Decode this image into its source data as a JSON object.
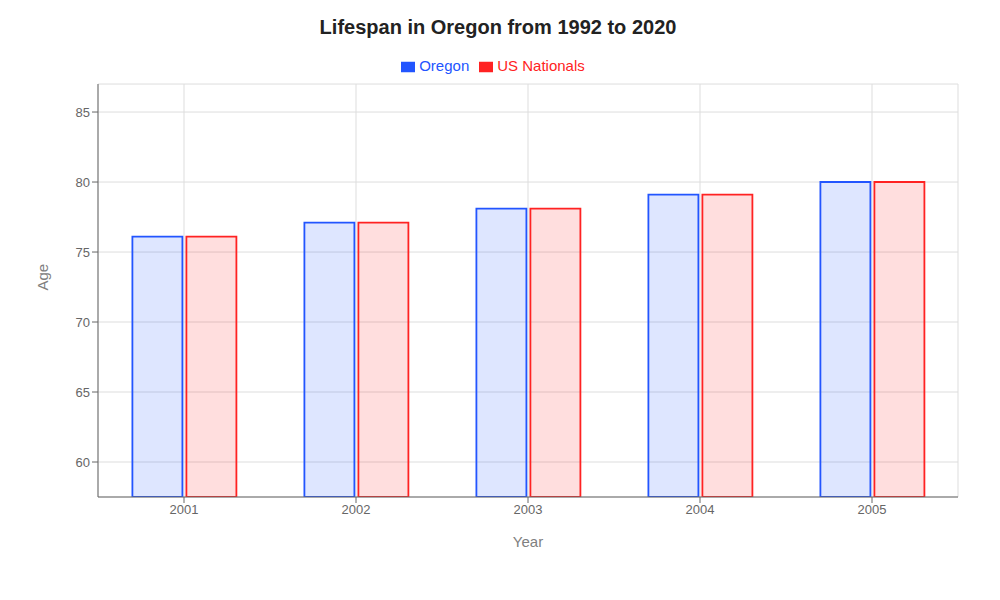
{
  "chart_data": {
    "type": "bar",
    "title": "Lifespan in Oregon from 1992 to 2020",
    "xlabel": "Year",
    "ylabel": "Age",
    "categories": [
      "2001",
      "2002",
      "2003",
      "2004",
      "2005"
    ],
    "series": [
      {
        "name": "Oregon",
        "color": "#2255FF",
        "values": [
          76.1,
          77.1,
          78.1,
          79.1,
          80.0
        ]
      },
      {
        "name": "US Nationals",
        "color": "#FF2222",
        "values": [
          76.1,
          77.1,
          78.1,
          79.1,
          80.0
        ]
      }
    ],
    "ylim": [
      57.5,
      87
    ],
    "yticks": [
      60,
      65,
      70,
      75,
      80,
      85
    ],
    "grid": true,
    "legend": "top"
  }
}
